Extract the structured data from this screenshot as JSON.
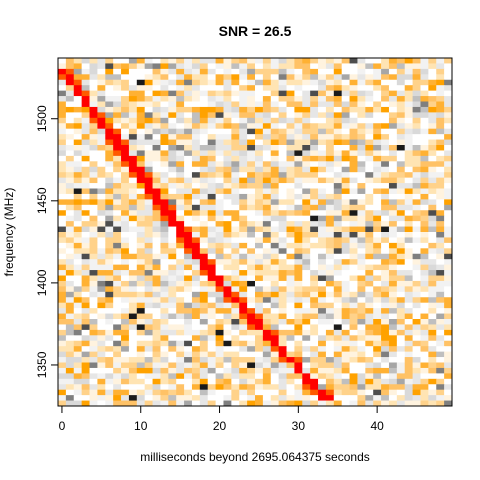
{
  "chart_data": {
    "type": "heatmap",
    "title": "SNR = 26.5",
    "xlabel": "milliseconds beyond 2695.064375 seconds",
    "ylabel": "frequency (MHz)",
    "xlim": [
      -0.5,
      49.5
    ],
    "ylim": [
      1325,
      1537
    ],
    "x_ticks": [
      0,
      10,
      20,
      30,
      40
    ],
    "y_ticks": [
      1350,
      1400,
      1450,
      1500
    ],
    "grid": false,
    "legend": "none",
    "n_time_bins": 50,
    "n_freq_channels": 64,
    "dispersion_track": {
      "description_points": [
        {
          "x": 0,
          "y": 1530
        },
        {
          "x": 10,
          "y": 1466
        },
        {
          "x": 20,
          "y": 1400
        },
        {
          "x": 30,
          "y": 1348
        },
        {
          "x": 34,
          "y": 1327
        }
      ]
    },
    "colors": {
      "noise_palette": [
        "#ffffff",
        "#f2f2f2",
        "#e6e6e6",
        "#d9d9d9",
        "#bfbfbf",
        "#a6a6a6",
        "#7f7f7f",
        "#4d4d4d",
        "#1a1a1a",
        "#fff3df",
        "#ffe4b3",
        "#ffd28a",
        "#ffc266",
        "#ffb133",
        "#ffa200"
      ],
      "signal": "#ff0000",
      "signal_edge": "#ff5a00"
    }
  }
}
